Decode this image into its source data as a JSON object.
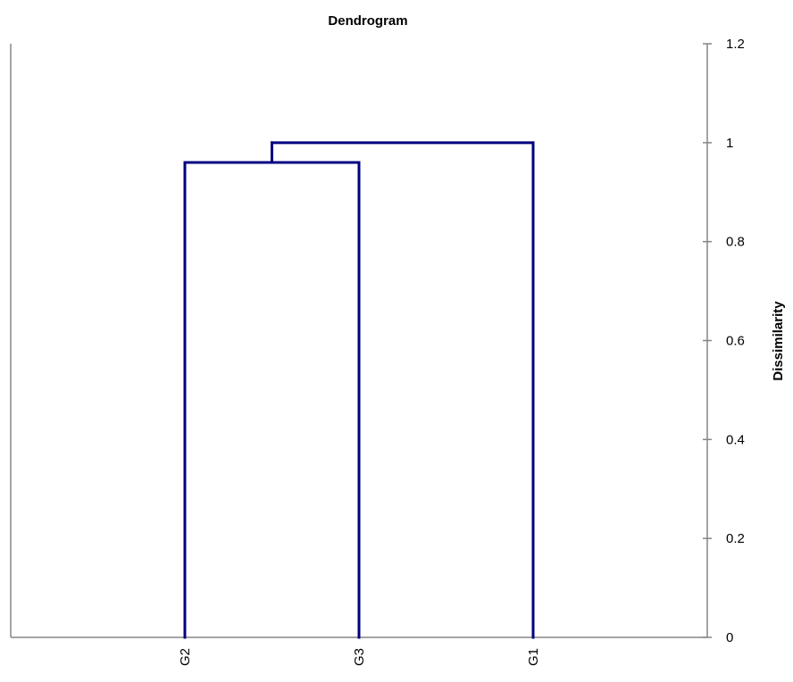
{
  "chart_data": {
    "type": "dendrogram",
    "title": "Dendrogram",
    "ylabel": "Dissimilarity",
    "ylim": [
      0,
      1.2
    ],
    "y_ticks": [
      "0",
      "0.2",
      "0.4",
      "0.6",
      "0.8",
      "1",
      "1.2"
    ],
    "y_axis_side": "right",
    "leaves": [
      "G2",
      "G3",
      "G1"
    ],
    "merges": [
      {
        "members": [
          "G2",
          "G3"
        ],
        "height": 0.96
      },
      {
        "members": [
          "G2",
          "G3",
          "G1"
        ],
        "height": 1.0
      }
    ],
    "grid": false
  },
  "colors": {
    "branch": "#000080",
    "axis": "#868686",
    "frame": "#868686"
  }
}
